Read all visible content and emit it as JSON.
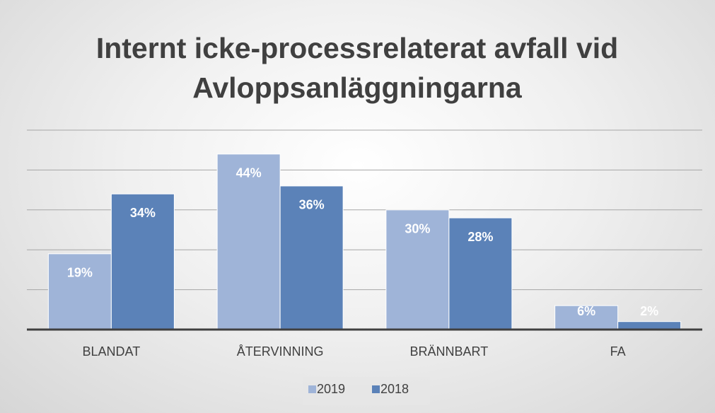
{
  "chart_data": {
    "type": "bar",
    "title": "Internt icke-processrelaterat avfall vid Avloppsanläggningarna",
    "categories": [
      "BLANDAT",
      "ÅTERVINNING",
      "BRÄNNBART",
      "FA"
    ],
    "series": [
      {
        "name": "2019",
        "color": "#9fb4d8",
        "values": [
          19,
          44,
          30,
          6
        ],
        "value_labels": [
          "19%",
          "44%",
          "30%",
          "6%"
        ]
      },
      {
        "name": "2018",
        "color": "#5b82b8",
        "values": [
          34,
          36,
          28,
          2
        ],
        "value_labels": [
          "34%",
          "36%",
          "28%",
          "2%"
        ]
      }
    ],
    "ylim": [
      0,
      50
    ],
    "yticks": [
      0,
      10,
      20,
      30,
      40,
      50
    ],
    "grid": true,
    "legend": "bottom"
  }
}
